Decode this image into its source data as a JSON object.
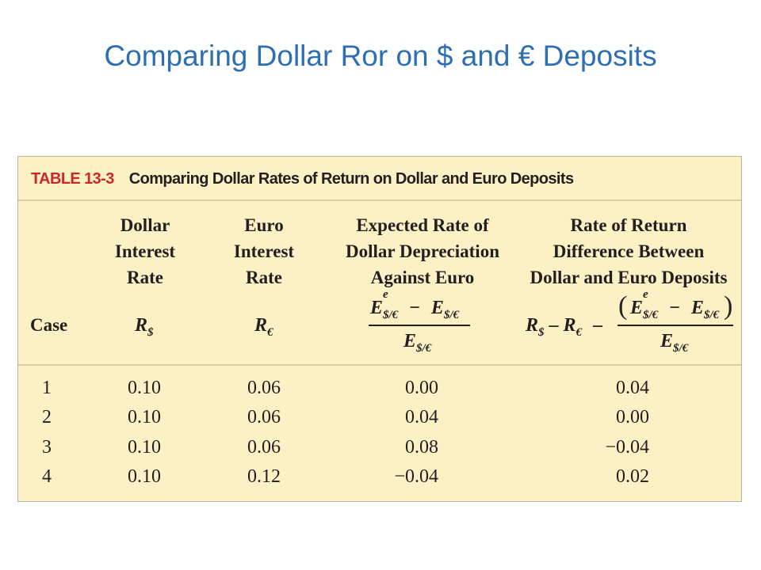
{
  "slide": {
    "title": "Comparing Dollar Ror on $ and € Deposits"
  },
  "table": {
    "tag": "TABLE 13-3",
    "caption": "Comparing Dollar Rates of Return on Dollar and Euro Deposits",
    "case_label": "Case",
    "headers": {
      "dollar": "Dollar\nInterest\nRate",
      "euro": "Euro\nInterest\nRate",
      "depreciation": "Expected Rate of\nDollar Depreciation\nAgainst Euro",
      "difference": "Rate of Return\nDifference Between\nDollar and Euro Deposits"
    },
    "symbols": {
      "R": "R",
      "dollar_sub": "$",
      "euro_sub": "€",
      "E": "E",
      "e_sup": "e",
      "rate_sub": "$/€",
      "minus": "−",
      "dash": "–"
    },
    "rows": [
      {
        "case": "1",
        "dollar": "0.10",
        "euro": "0.06",
        "depreciation": "0.00",
        "difference": "0.04"
      },
      {
        "case": "2",
        "dollar": "0.10",
        "euro": "0.06",
        "depreciation": "0.04",
        "difference": "0.00"
      },
      {
        "case": "3",
        "dollar": "0.10",
        "euro": "0.06",
        "depreciation": "0.08",
        "difference": "−0.04"
      },
      {
        "case": "4",
        "dollar": "0.10",
        "euro": "0.12",
        "depreciation": "−0.04",
        "difference": "0.02"
      }
    ]
  }
}
